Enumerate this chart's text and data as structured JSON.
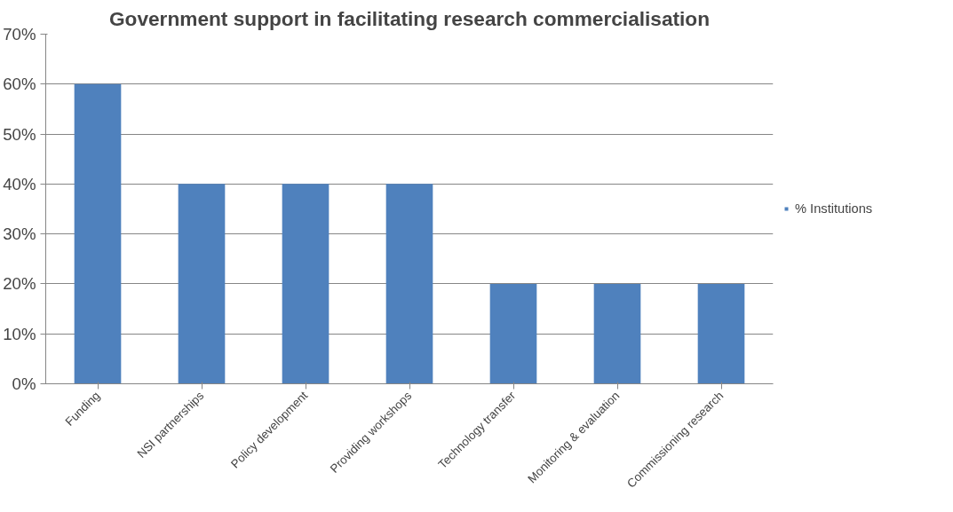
{
  "chart_data": {
    "type": "bar",
    "title": "Government support in facilitating research commercialisation",
    "categories": [
      "Funding",
      "NSI partnerships",
      "Policy development",
      "Providing workshops",
      "Technology transfer",
      "Monitoring & evaluation",
      "Commissioning research"
    ],
    "series": [
      {
        "name": "% Institutions",
        "color": "#4f81bd",
        "values": [
          60,
          40,
          40,
          40,
          20,
          20,
          20
        ]
      }
    ],
    "ylim": [
      0,
      70
    ],
    "yticks": [
      {
        "value": 0,
        "label": "0%"
      },
      {
        "value": 10,
        "label": "10%"
      },
      {
        "value": 20,
        "label": "20%"
      },
      {
        "value": 30,
        "label": "30%"
      },
      {
        "value": 40,
        "label": "40%"
      },
      {
        "value": 50,
        "label": "50%"
      },
      {
        "value": 60,
        "label": "60%"
      },
      {
        "value": 70,
        "label": "70%"
      }
    ],
    "grid": "y",
    "legend": "right"
  }
}
